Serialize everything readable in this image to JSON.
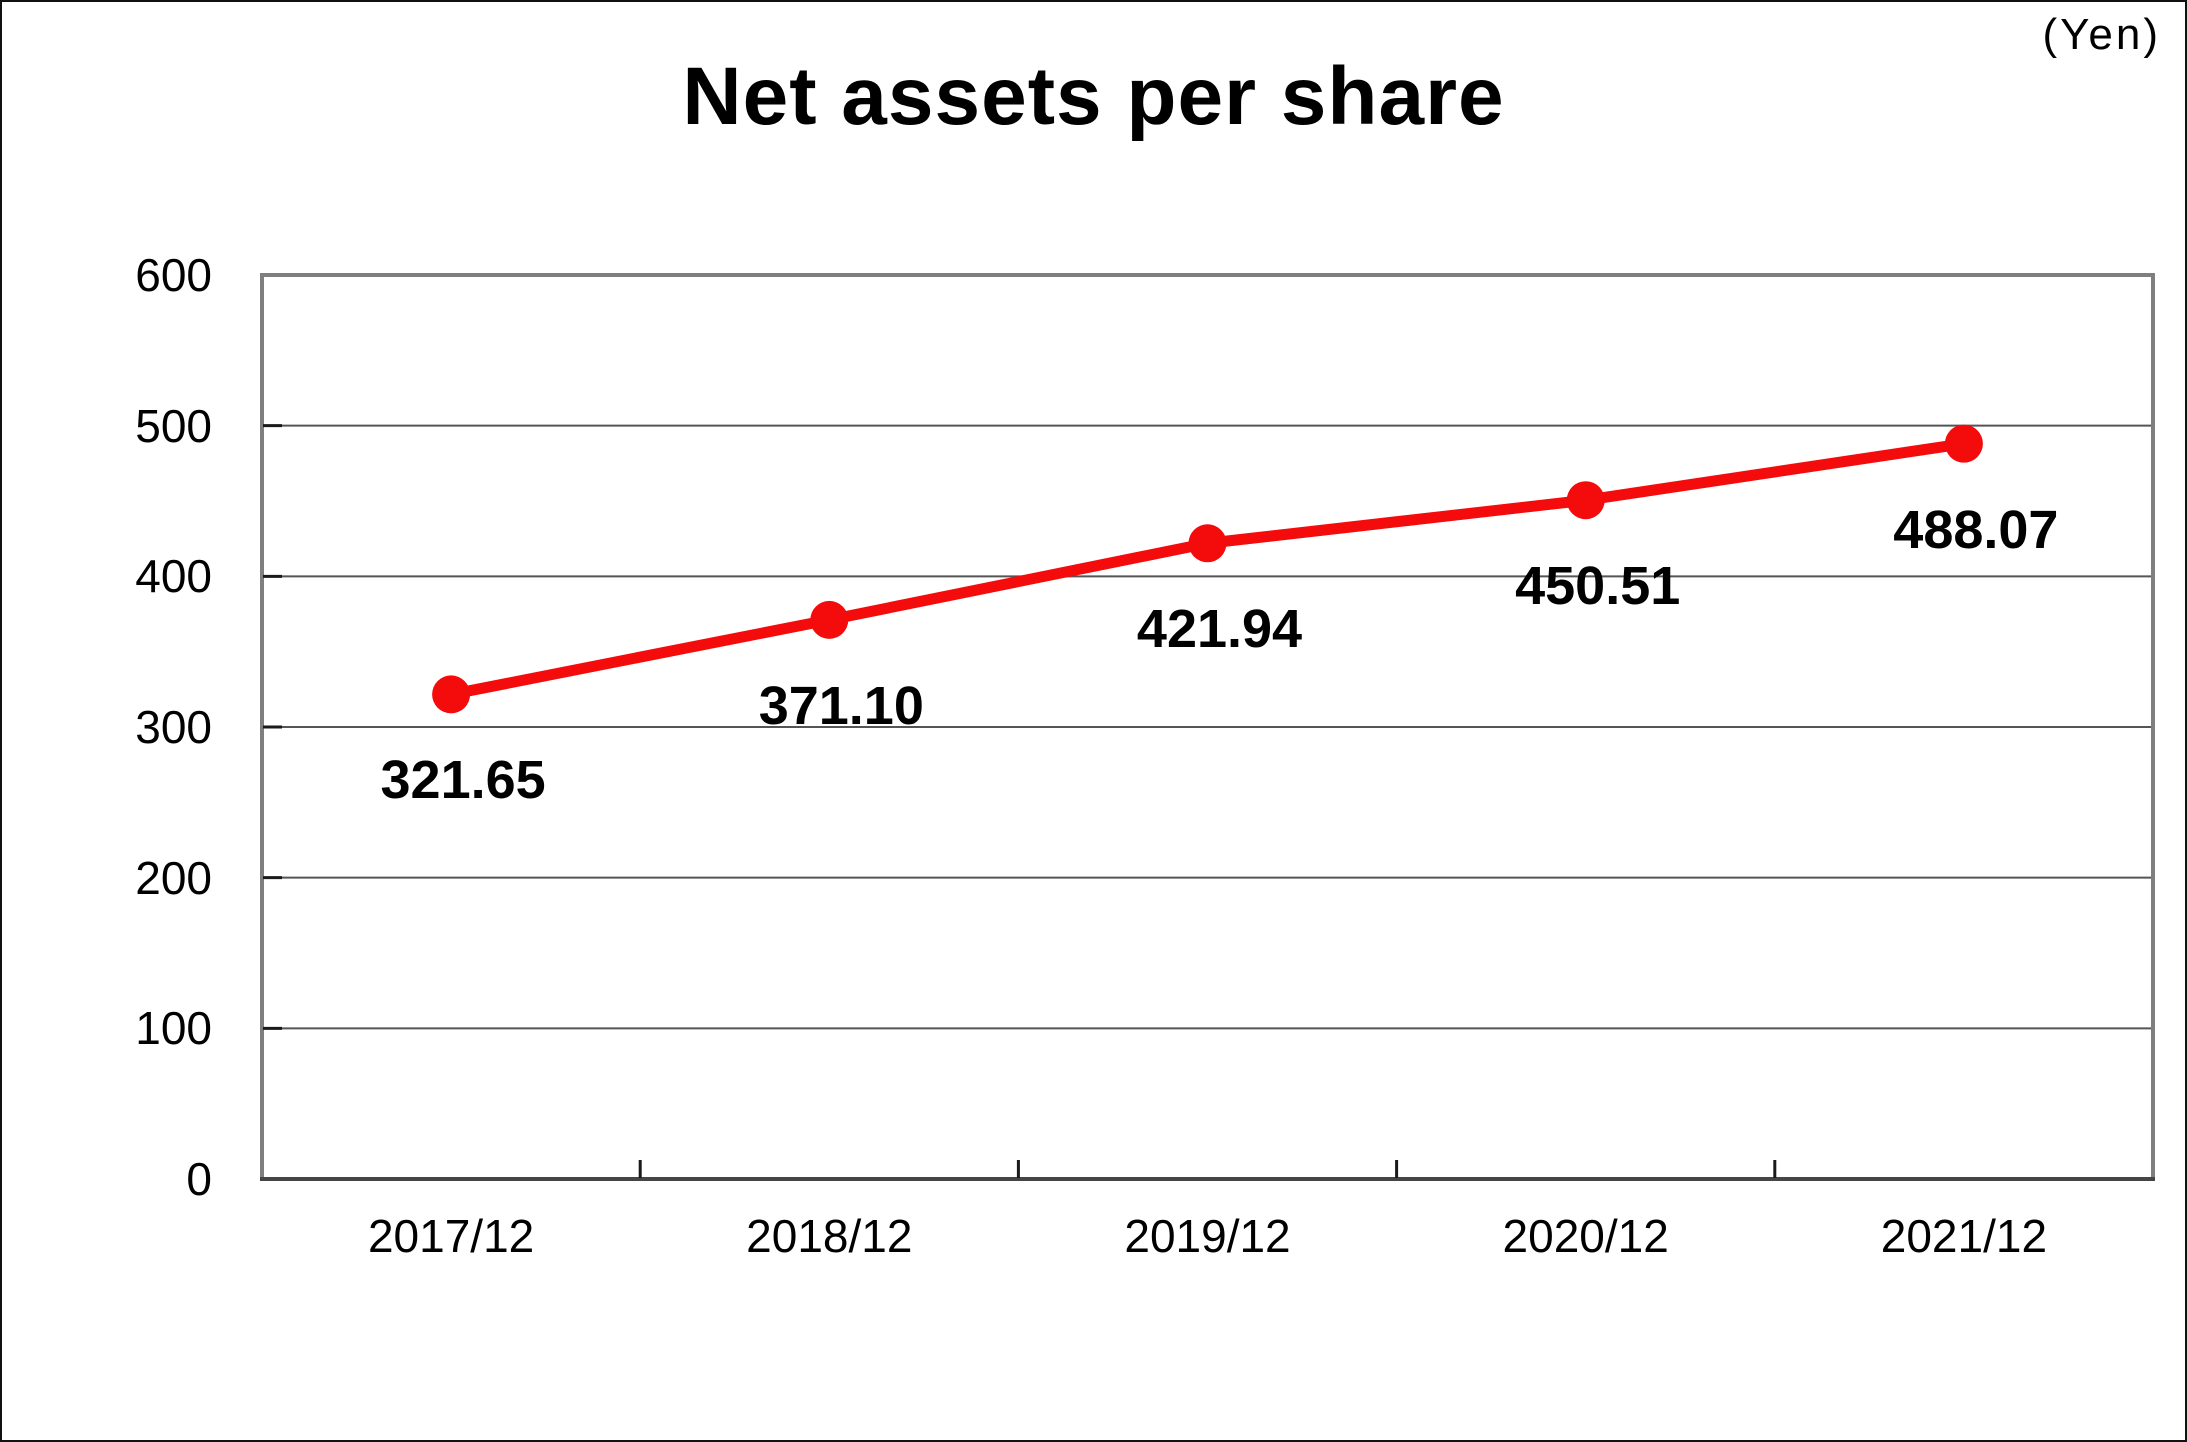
{
  "header": {
    "title": "Net assets per share",
    "unit_label": "(Yen)"
  },
  "chart_data": {
    "type": "line",
    "title": "Net assets per share",
    "unit": "(Yen)",
    "categories": [
      "2017/12",
      "2018/12",
      "2019/12",
      "2020/12",
      "2021/12"
    ],
    "series": [
      {
        "name": "Net assets per share",
        "values": [
          321.65,
          371.1,
          421.94,
          450.51,
          488.07
        ]
      }
    ],
    "data_labels": [
      "321.65",
      "371.10",
      "421.94",
      "450.51",
      "488.07"
    ],
    "ylim": [
      0,
      600
    ],
    "yticks": [
      "0",
      "100",
      "200",
      "300",
      "400",
      "500",
      "600"
    ],
    "grid": true,
    "legend_position": "none",
    "colors": {
      "line": "#f40b0b",
      "marker": "#f40b0b",
      "grid": "#555555",
      "frame": "#7f7f7f",
      "axis": "#454545",
      "tick": "#1a1a1a",
      "text": "#000000"
    }
  }
}
